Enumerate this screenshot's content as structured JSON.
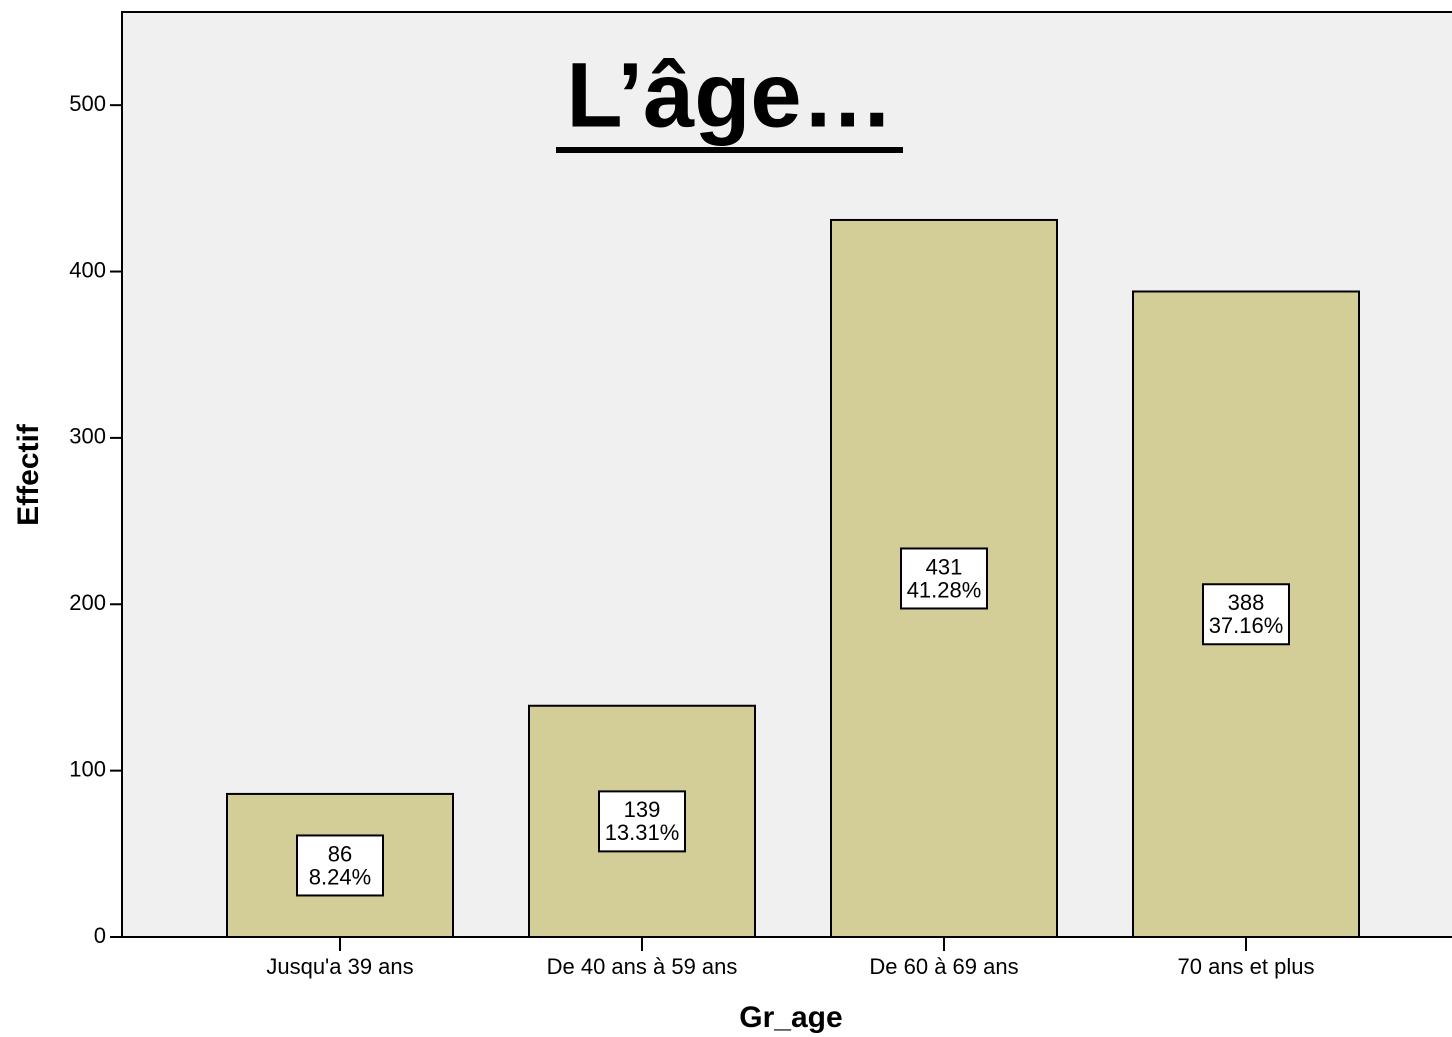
{
  "chart_data": {
    "type": "bar",
    "title": "L’âge…",
    "x_label": "Gr_age",
    "y_label": "Effectif",
    "categories": [
      "Jusqu'a 39 ans",
      "De 40 ans à 59 ans",
      "De 60 à 69 ans",
      "70 ans et plus"
    ],
    "values": [
      86,
      139,
      431,
      388
    ],
    "percent_labels": [
      "8.24%",
      "13.31%",
      "41.28%",
      "37.16%"
    ],
    "color": "#d3ce97",
    "ylim": [
      0,
      556
    ],
    "yticks": [
      0,
      100,
      200,
      300,
      400,
      500
    ],
    "grid": false
  }
}
